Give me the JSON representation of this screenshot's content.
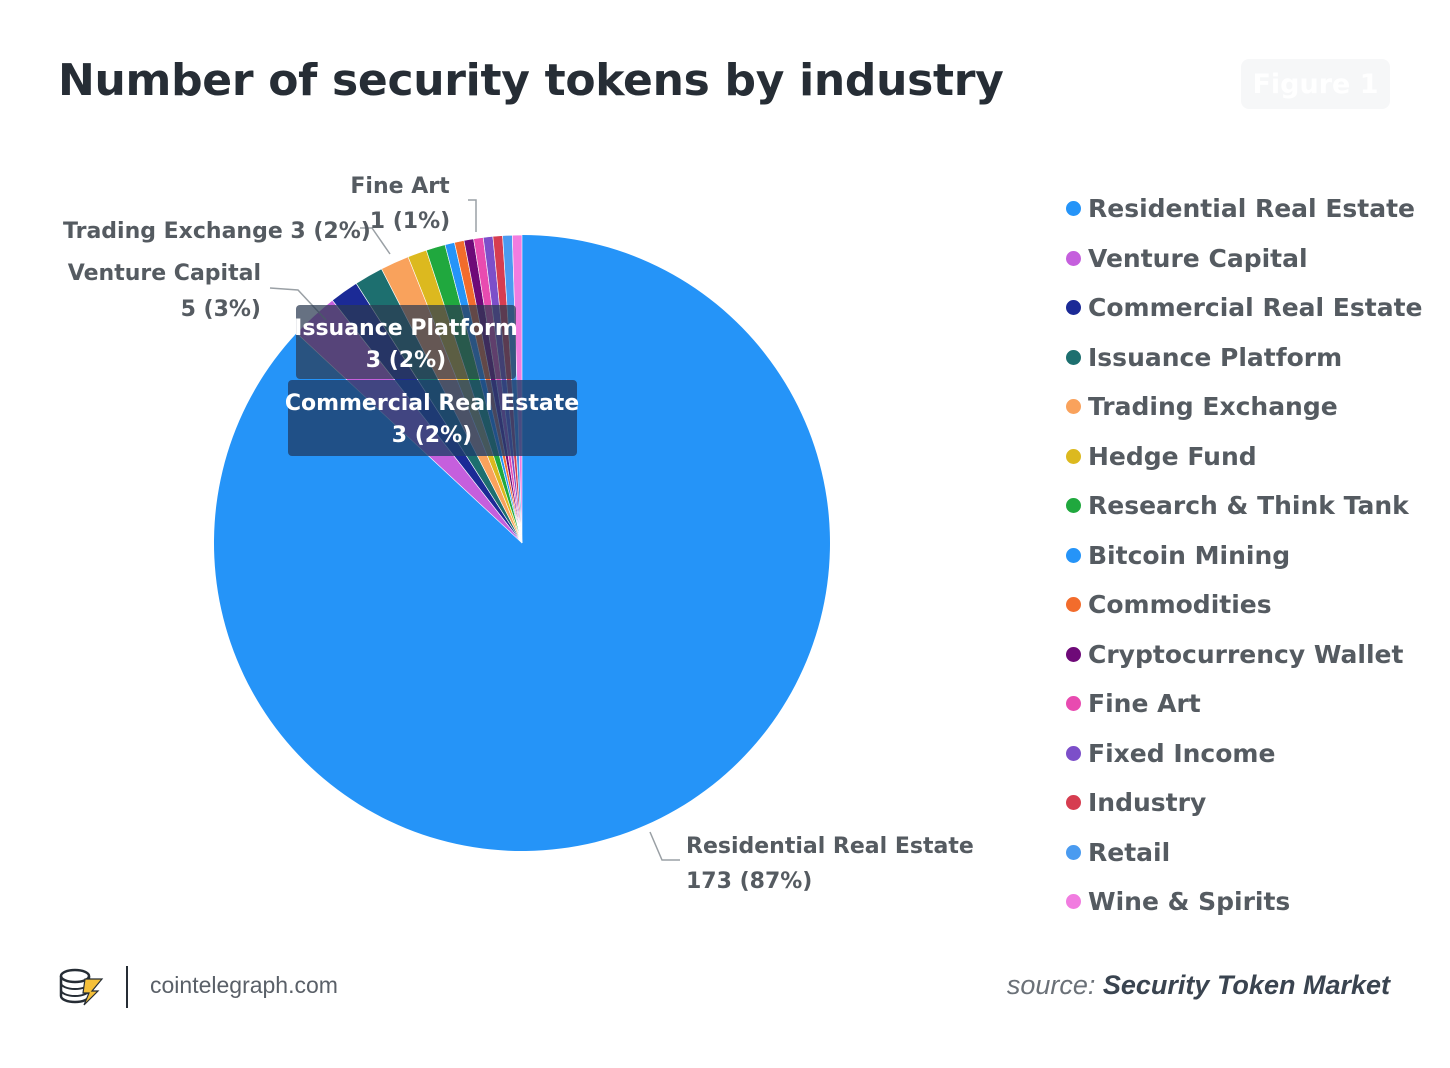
{
  "header": {
    "title": "Number of security tokens by industry",
    "figure_badge": "Figure 1"
  },
  "chart_data": {
    "type": "pie",
    "title": "Number of security tokens by industry",
    "slices": [
      {
        "name": "Residential Real Estate",
        "value": 173,
        "color": "#2594f8"
      },
      {
        "name": "Venture Capital",
        "value": 5,
        "color": "#c55fdd"
      },
      {
        "name": "Commercial Real Estate",
        "value": 3,
        "color": "#1b2a96"
      },
      {
        "name": "Issuance Platform",
        "value": 3,
        "color": "#1d6f6f"
      },
      {
        "name": "Trading Exchange",
        "value": 3,
        "color": "#f9a25c"
      },
      {
        "name": "Hedge Fund",
        "value": 2,
        "color": "#dcb91f"
      },
      {
        "name": "Research & Think Tank",
        "value": 2,
        "color": "#20a83e"
      },
      {
        "name": "Bitcoin Mining",
        "value": 1,
        "color": "#2594f8"
      },
      {
        "name": "Commodities",
        "value": 1,
        "color": "#f26c2c"
      },
      {
        "name": "Cryptocurrency Wallet",
        "value": 1,
        "color": "#6e0a78"
      },
      {
        "name": "Fine Art",
        "value": 1,
        "color": "#e84bb0"
      },
      {
        "name": "Fixed Income",
        "value": 1,
        "color": "#7c4fc9"
      },
      {
        "name": "Industry",
        "value": 1,
        "color": "#d63d50"
      },
      {
        "name": "Retail",
        "value": 1,
        "color": "#4a9bf0"
      },
      {
        "name": "Wine & Spirits",
        "value": 1,
        "color": "#f17ce0"
      }
    ],
    "labels": {
      "fine_art": {
        "name": "Fine Art",
        "value_text": "1 (1%)"
      },
      "trading_exchange": {
        "text": "Trading Exchange 3 (2%)"
      },
      "venture_capital": {
        "name": "Venture Capital",
        "value_text": "5 (3%)"
      },
      "issuance_platform": {
        "name": "Issuance Platform",
        "value_text": "3 (2%)"
      },
      "commercial_real_estate": {
        "name": "Commercial Real Estate",
        "value_text": "3 (2%)"
      },
      "residential_real_estate": {
        "name": "Residential Real Estate",
        "value_text": "173 (87%)"
      }
    },
    "legend_position": "right"
  },
  "footer": {
    "site": "cointelegraph.com",
    "source_prefix": "source:",
    "source_name": "Security Token Market"
  }
}
